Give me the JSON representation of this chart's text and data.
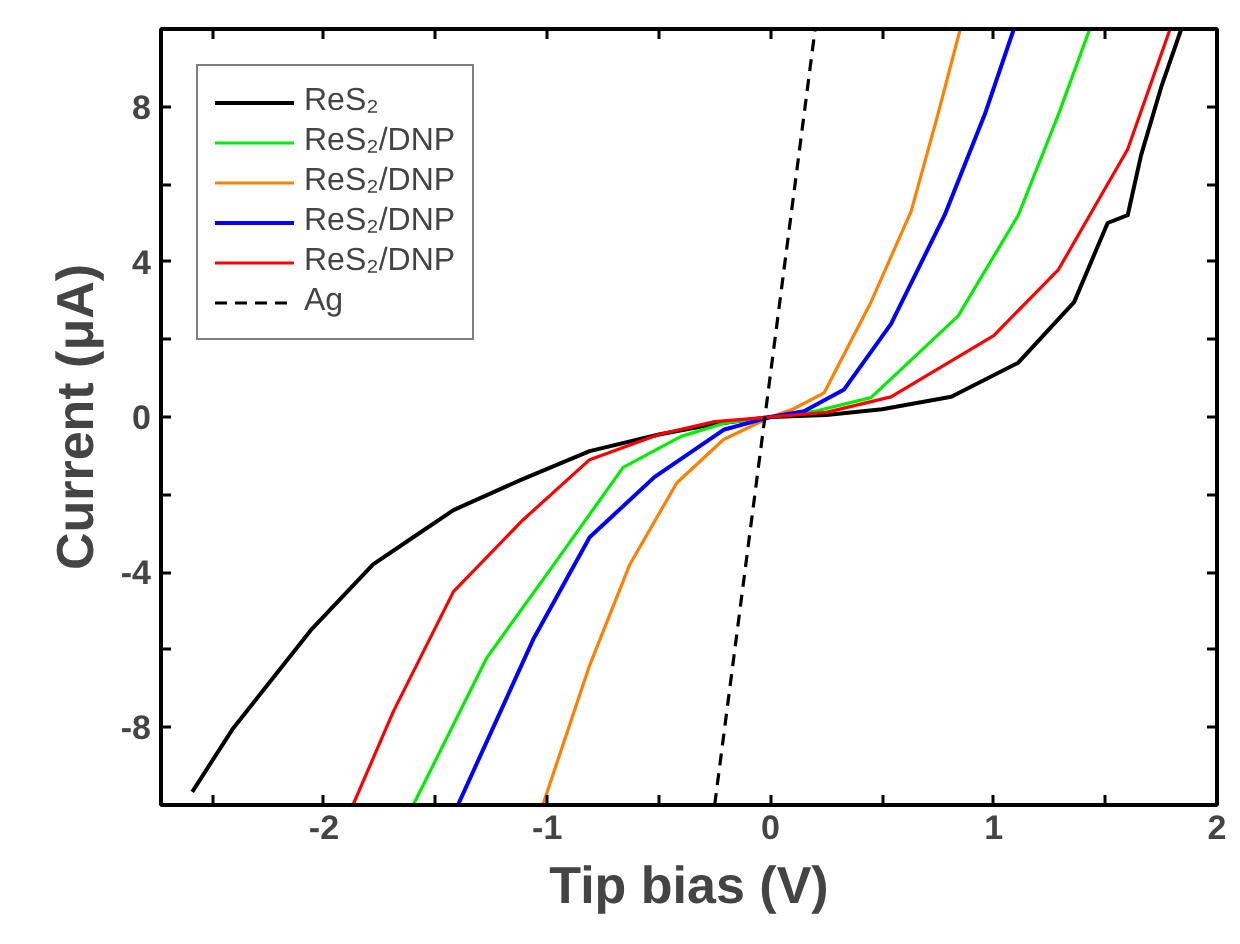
{
  "chart_data": {
    "type": "line",
    "xlabel": "Tip bias (V)",
    "ylabel": "Current (μA)",
    "xlim": [
      -2.73,
      2
    ],
    "ylim": [
      -10,
      10
    ],
    "xticks": [
      {
        "value": -2.5,
        "label": null
      },
      -2,
      {
        "value": -1.5,
        "label": null
      },
      -1,
      {
        "value": -0.5,
        "label": null
      },
      0,
      {
        "value": 0.5,
        "label": null
      },
      1,
      {
        "value": 1.5,
        "label": null
      },
      2
    ],
    "yticks": [
      {
        "value": -10,
        "label": null
      },
      -8,
      {
        "value": -6,
        "label": null
      },
      -4,
      {
        "value": -2,
        "label": null
      },
      0,
      {
        "value": 2,
        "label": null
      },
      4,
      {
        "value": 6,
        "label": null
      },
      8,
      {
        "value": 10,
        "label": null
      }
    ],
    "grid": false,
    "legend": "top left",
    "line_style": "solid",
    "series": [
      {
        "name": "ReS₂",
        "color": "#000000",
        "x": [
          -2.59,
          -2.41,
          -2.06,
          -1.78,
          -1.6,
          -1.42,
          -1.11,
          -0.81,
          -0.5,
          -0.25,
          0,
          0.25,
          0.5,
          0.81,
          1.11,
          1.36,
          1.51,
          1.6,
          1.66,
          1.75,
          1.84
        ],
        "values": [
          -9.66,
          -8.05,
          -5.5,
          -3.8,
          -3.1,
          -2.4,
          -1.6,
          -0.88,
          -0.45,
          -0.18,
          0,
          0.05,
          0.2,
          0.52,
          1.4,
          2.96,
          5.0,
          5.2,
          6.75,
          8.5,
          10
        ]
      },
      {
        "name": "ReS₂/DNP",
        "color": "#00ee00",
        "x": [
          -1.6,
          -1.27,
          -0.97,
          -0.66,
          -0.4,
          -0.2,
          0,
          0.2,
          0.45,
          0.84,
          1.11,
          1.29,
          1.43
        ],
        "values": [
          -10,
          -6.2,
          -3.8,
          -1.3,
          -0.5,
          -0.15,
          0,
          0.15,
          0.5,
          2.6,
          5.2,
          7.8,
          10
        ]
      },
      {
        "name": "ReS₂/DNP",
        "color": "#ff8000",
        "x": [
          -1.02,
          -0.81,
          -0.63,
          -0.42,
          -0.21,
          0,
          0.1,
          0.24,
          0.45,
          0.63,
          0.75,
          0.85
        ],
        "values": [
          -10,
          -6.4,
          -3.8,
          -1.7,
          -0.58,
          0,
          0.2,
          0.62,
          2.96,
          5.3,
          7.8,
          10
        ]
      },
      {
        "name": "ReS₂/DNP",
        "color": "#0000ff",
        "x": [
          -1.4,
          -1.06,
          -0.81,
          -0.52,
          -0.21,
          0,
          0.15,
          0.33,
          0.54,
          0.78,
          0.96,
          1.09
        ],
        "values": [
          -10,
          -5.7,
          -3.1,
          -1.55,
          -0.33,
          0,
          0.15,
          0.71,
          2.4,
          5.2,
          7.8,
          10
        ]
      },
      {
        "name": "ReS₂/DNP",
        "color": "#ff0000",
        "x": [
          -1.87,
          -1.69,
          -1.42,
          -1.11,
          -0.81,
          -0.5,
          -0.25,
          0,
          0.25,
          0.54,
          1.0,
          1.29,
          1.6,
          1.79
        ],
        "values": [
          -10,
          -7.6,
          -4.5,
          -2.66,
          -1.1,
          -0.45,
          -0.12,
          0,
          0.12,
          0.52,
          2.1,
          3.8,
          6.9,
          10
        ]
      },
      {
        "name": "Ag",
        "color": "#000000",
        "line_style": "dashed",
        "x": [
          -0.25,
          0.2
        ],
        "values": [
          -10,
          10
        ]
      }
    ]
  }
}
